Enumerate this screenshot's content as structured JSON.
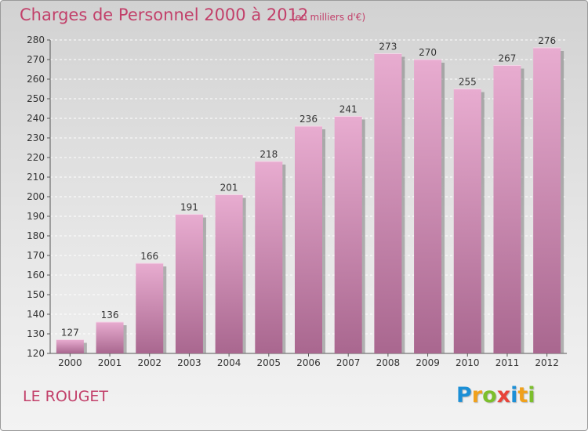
{
  "title": "Charges de Personnel 2000 à 2012",
  "subtitle": "(en milliers d'€)",
  "commune": "LE ROUGET",
  "logo": {
    "letters": [
      "P",
      "r",
      "o",
      "x",
      "i",
      "t",
      "i"
    ],
    "colors": [
      "#1c8fd6",
      "#f0a11c",
      "#7cbf2c",
      "#e8443a",
      "#1c8fd6",
      "#f0a11c",
      "#7cbf2c"
    ]
  },
  "colors": {
    "accent": "#c2406a",
    "bar_top": "#e8acd0",
    "bar_bottom": "#a9678f",
    "bar_shadow": "#7e7e7e"
  },
  "chart_data": {
    "type": "bar",
    "title": "Charges de Personnel 2000 à 2012",
    "subtitle": "(en milliers d'€)",
    "categories": [
      "2000",
      "2001",
      "2002",
      "2003",
      "2004",
      "2005",
      "2006",
      "2007",
      "2008",
      "2009",
      "2010",
      "2011",
      "2012"
    ],
    "values": [
      127,
      136,
      166,
      191,
      201,
      218,
      236,
      241,
      273,
      270,
      255,
      267,
      276
    ],
    "value_labels": [
      "127",
      "136",
      "166",
      "191",
      "201",
      "218",
      "236",
      "241",
      "273",
      "270",
      "255",
      "267",
      "276"
    ],
    "ylim": [
      120,
      280
    ],
    "yticks": [
      120,
      130,
      140,
      150,
      160,
      170,
      180,
      190,
      200,
      210,
      220,
      230,
      240,
      250,
      260,
      270,
      280
    ],
    "ytick_labels": [
      "120",
      "130",
      "140",
      "150",
      "160",
      "170",
      "180",
      "190",
      "200",
      "210",
      "220",
      "230",
      "240",
      "250",
      "260",
      "270",
      "280"
    ],
    "xlabel": "",
    "ylabel": "",
    "grid": true
  }
}
